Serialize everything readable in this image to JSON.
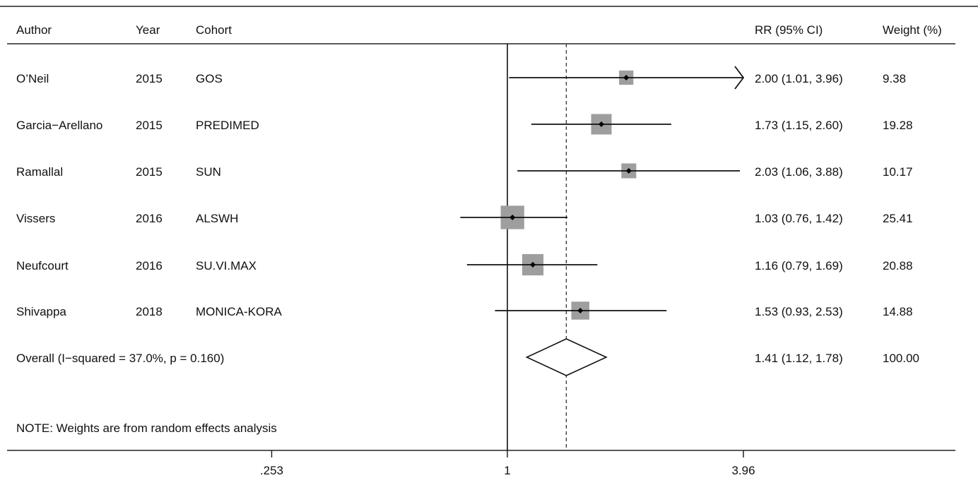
{
  "headers": {
    "author": "Author",
    "year": "Year",
    "cohort": "Cohort",
    "rr": "RR (95% CI)",
    "weight": "Weight (%)"
  },
  "overall_label": "Overall  (I−squared = 37.0%, p = 0.160)",
  "note": "NOTE: Weights are from random effects analysis",
  "chart_data": {
    "type": "forest",
    "scale": "log",
    "xlim": [
      0.253,
      3.96
    ],
    "xticks": [
      ".253",
      "1",
      "3.96"
    ],
    "null_line": 1,
    "pooled_line": 1.41,
    "studies": [
      {
        "author": "O’Neil",
        "year": "2015",
        "cohort": "GOS",
        "rr": 2.0,
        "lo": 1.01,
        "hi": 3.96,
        "weight": 9.38,
        "rr_text": "2.00 (1.01, 3.96)",
        "weight_text": "9.38",
        "arrow": true
      },
      {
        "author": "Garcia−Arellano",
        "year": "2015",
        "cohort": "PREDIMED",
        "rr": 1.73,
        "lo": 1.15,
        "hi": 2.6,
        "weight": 19.28,
        "rr_text": "1.73 (1.15, 2.60)",
        "weight_text": "19.28"
      },
      {
        "author": "Ramallal",
        "year": "2015",
        "cohort": "SUN",
        "rr": 2.03,
        "lo": 1.06,
        "hi": 3.88,
        "weight": 10.17,
        "rr_text": "2.03 (1.06, 3.88)",
        "weight_text": "10.17"
      },
      {
        "author": "Vissers",
        "year": "2016",
        "cohort": "ALSWH",
        "rr": 1.03,
        "lo": 0.76,
        "hi": 1.42,
        "weight": 25.41,
        "rr_text": "1.03 (0.76, 1.42)",
        "weight_text": "25.41"
      },
      {
        "author": "Neufcourt",
        "year": "2016",
        "cohort": "SU.VI.MAX",
        "rr": 1.16,
        "lo": 0.79,
        "hi": 1.69,
        "weight": 20.88,
        "rr_text": "1.16 (0.79, 1.69)",
        "weight_text": "20.88"
      },
      {
        "author": "Shivappa",
        "year": "2018",
        "cohort": "MONICA-KORA",
        "rr": 1.53,
        "lo": 0.93,
        "hi": 2.53,
        "weight": 14.88,
        "rr_text": "1.53 (0.93, 2.53)",
        "weight_text": "14.88"
      }
    ],
    "overall": {
      "rr": 1.41,
      "lo": 1.12,
      "hi": 1.78,
      "weight": 100.0,
      "rr_text": "1.41 (1.12, 1.78)",
      "weight_text": "100.00"
    }
  }
}
